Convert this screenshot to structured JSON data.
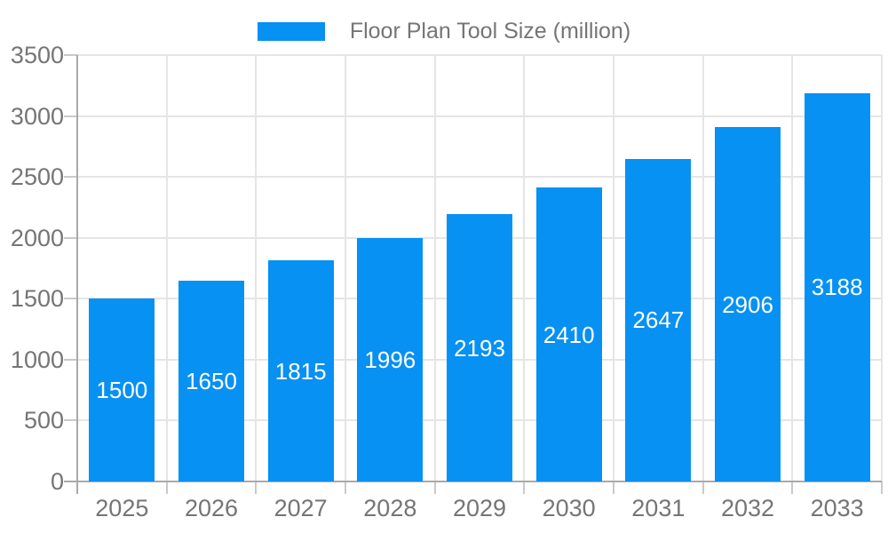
{
  "legend": {
    "label": "Floor Plan Tool Size (million)"
  },
  "colors": {
    "bar": "#0791f3",
    "axis": "#a9a9a9",
    "gridline": "#e5e5e5",
    "tick": "#c9c9c9",
    "label_text": "#757575",
    "value_text": "#ffffff",
    "background": "#ffffff"
  },
  "chart_data": {
    "type": "bar",
    "title": "Floor Plan Tool Size (million)",
    "series_name": "Floor Plan Tool Size (million)",
    "categories": [
      "2025",
      "2026",
      "2027",
      "2028",
      "2029",
      "2030",
      "2031",
      "2032",
      "2033"
    ],
    "values": [
      1500,
      1650,
      1815,
      1996,
      2193,
      2410,
      2647,
      2906,
      3188
    ],
    "xlabel": "",
    "ylabel": "",
    "ylim": [
      0,
      3500
    ],
    "yticks": [
      0,
      500,
      1000,
      1500,
      2000,
      2500,
      3000,
      3500
    ],
    "grid": true,
    "legend_position": "top-center",
    "value_label_position": "inside-center"
  }
}
